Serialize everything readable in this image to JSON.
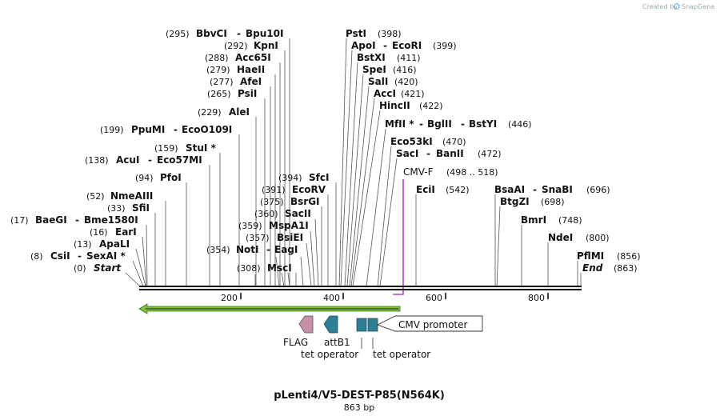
{
  "credit": {
    "prefix": "Created by",
    "brand": "SnapGene"
  },
  "map": {
    "title": "pLenti4/V5-DEST-P85(N564K)",
    "length_label": "863 bp",
    "length_bp": 863,
    "ticks": [
      "200",
      "400",
      "600",
      "800"
    ]
  },
  "sites": [
    {
      "pos_label": "(295)",
      "name": "BbvCI",
      "name2": "Bpu10I",
      "bp": 295
    },
    {
      "pos_label": "(292)",
      "name": "KpnI",
      "bp": 292
    },
    {
      "pos_label": "(288)",
      "name": "Acc65I",
      "bp": 288
    },
    {
      "pos_label": "(279)",
      "name": "HaeII",
      "bp": 279
    },
    {
      "pos_label": "(277)",
      "name": "AfeI",
      "bp": 277
    },
    {
      "pos_label": "(265)",
      "name": "PsiI",
      "bp": 265
    },
    {
      "pos_label": "(229)",
      "name": "AleI",
      "bp": 229
    },
    {
      "pos_label": "(199)",
      "name": "PpuMI",
      "name2": "EcoO109I",
      "bp": 199
    },
    {
      "pos_label": "(159)",
      "name": "StuI *",
      "bp": 159
    },
    {
      "pos_label": "(138)",
      "name": "AcuI",
      "name2": "Eco57MI",
      "bp": 138
    },
    {
      "pos_label": "(94)",
      "name": "PfoI",
      "bp": 94
    },
    {
      "pos_label": "(52)",
      "name": "NmeAIII",
      "bp": 52
    },
    {
      "pos_label": "(33)",
      "name": "SfiI",
      "bp": 33
    },
    {
      "pos_label": "(17)",
      "name": "BaeGI",
      "name2": "Bme1580I",
      "bp": 17
    },
    {
      "pos_label": "(16)",
      "name": "EarI",
      "bp": 16
    },
    {
      "pos_label": "(13)",
      "name": "ApaLI",
      "bp": 13
    },
    {
      "pos_label": "(8)",
      "name": "CsiI",
      "name2": "SexAI *",
      "bp": 8
    },
    {
      "pos_label": "(0)",
      "name": "Start",
      "bp": 0
    },
    {
      "pos_label": "(354)",
      "name": "NotI",
      "name2": "EagI",
      "bp": 354
    },
    {
      "pos_label": "(308)",
      "name": "MscI",
      "bp": 308
    },
    {
      "pos_label": "(394)",
      "name": "SfcI",
      "bp": 394
    },
    {
      "pos_label": "(391)",
      "name": "EcoRV",
      "bp": 391
    },
    {
      "pos_label": "(375)",
      "name": "BsrGI",
      "bp": 375
    },
    {
      "pos_label": "(360)",
      "name": "SacII",
      "bp": 360
    },
    {
      "pos_label": "(359)",
      "name": "MspA1I",
      "bp": 359
    },
    {
      "pos_label": "(357)",
      "name": "BsiEI",
      "bp": 357
    },
    {
      "pos_label": "(398)",
      "name": "PstI",
      "bp": 398
    },
    {
      "pos_label": "(399)",
      "name": "ApoI",
      "name2": "EcoRI",
      "bp": 399
    },
    {
      "pos_label": "(411)",
      "name": "BstXI",
      "bp": 411
    },
    {
      "pos_label": "(416)",
      "name": "SpeI",
      "bp": 416
    },
    {
      "pos_label": "(420)",
      "name": "SalI",
      "bp": 420
    },
    {
      "pos_label": "(421)",
      "name": "AccI",
      "bp": 421
    },
    {
      "pos_label": "(422)",
      "name": "HincII",
      "bp": 422
    },
    {
      "pos_label": "(446)",
      "name": "MfII *",
      "name2": "BglII",
      "name3": "BstYI",
      "bp": 446
    },
    {
      "pos_label": "(470)",
      "name": "Eco53kI",
      "bp": 470
    },
    {
      "pos_label": "(472)",
      "name": "SacI",
      "name2": "BanII",
      "bp": 472
    },
    {
      "pos_label": "(542)",
      "name": "EciI",
      "bp": 542
    },
    {
      "pos_label": "(696)",
      "name": "BsaAI",
      "name2": "SnaBI",
      "bp": 696
    },
    {
      "pos_label": "(698)",
      "name": "BtgZI",
      "bp": 698
    },
    {
      "pos_label": "(748)",
      "name": "BmrI",
      "bp": 748
    },
    {
      "pos_label": "(800)",
      "name": "NdeI",
      "bp": 800
    },
    {
      "pos_label": "(856)",
      "name": "PflMI",
      "bp": 856
    },
    {
      "pos_label": "(863)",
      "name": "End",
      "bp": 863
    }
  ],
  "primer": {
    "name": "CMV-F",
    "range_label": "(498 .. 518)",
    "color": "#a020c0"
  },
  "features": {
    "orf_color": "#7fc241",
    "flag": {
      "label": "FLAG",
      "color": "#c78fa8"
    },
    "attb1": {
      "label": "attB1",
      "color": "#2f7e93"
    },
    "tet1": {
      "label": "tet operator",
      "color": "#2f7e93"
    },
    "tet2": {
      "label": "tet operator",
      "color": "#2f7e93"
    },
    "cmv": {
      "label": "CMV promoter"
    }
  }
}
